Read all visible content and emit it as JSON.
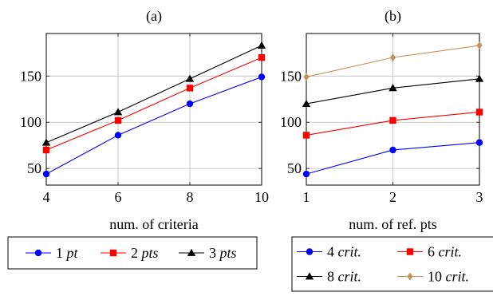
{
  "chart_data": [
    {
      "type": "line",
      "title": "(a)",
      "xlabel": "num. of criteria",
      "ylabel": "",
      "x": [
        4,
        6,
        8,
        10
      ],
      "xlim": [
        4,
        10
      ],
      "ylim": [
        32,
        196
      ],
      "xticks": [
        4,
        6,
        8,
        10
      ],
      "yticks": [
        50,
        100,
        150
      ],
      "grid": true,
      "legend_position": "below",
      "series": [
        {
          "name": "1 pt",
          "name_num": "1",
          "name_unit": "pt",
          "color": "#0000ff",
          "marker": "circle",
          "values": [
            44,
            86,
            120,
            149
          ]
        },
        {
          "name": "2 pts",
          "name_num": "2",
          "name_unit": "pts",
          "color": "#ff0000",
          "marker": "square",
          "values": [
            70,
            102,
            137,
            170
          ]
        },
        {
          "name": "3 pts",
          "name_num": "3",
          "name_unit": "pts",
          "color": "#000000",
          "marker": "triangle",
          "values": [
            78,
            111,
            147,
            183
          ]
        }
      ]
    },
    {
      "type": "line",
      "title": "(b)",
      "xlabel": "num. of ref. pts",
      "ylabel": "",
      "x": [
        1,
        2,
        3
      ],
      "xlim": [
        1,
        3
      ],
      "ylim": [
        32,
        196
      ],
      "xticks": [
        1,
        2,
        3
      ],
      "yticks": [
        50,
        100,
        150
      ],
      "grid": true,
      "legend_position": "below",
      "series": [
        {
          "name": "4 crit.",
          "name_num": "4",
          "name_unit": "crit.",
          "color": "#0000ff",
          "marker": "circle",
          "values": [
            44,
            70,
            78
          ]
        },
        {
          "name": "6 crit.",
          "name_num": "6",
          "name_unit": "crit.",
          "color": "#ff0000",
          "marker": "square",
          "values": [
            86,
            102,
            111
          ]
        },
        {
          "name": "8 crit.",
          "name_num": "8",
          "name_unit": "crit.",
          "color": "#000000",
          "marker": "triangle",
          "values": [
            120,
            137,
            147
          ]
        },
        {
          "name": "10 crit.",
          "name_num": "10",
          "name_unit": "crit.",
          "color": "#c8915a",
          "marker": "diamond",
          "values": [
            149,
            170,
            183
          ]
        }
      ]
    }
  ]
}
